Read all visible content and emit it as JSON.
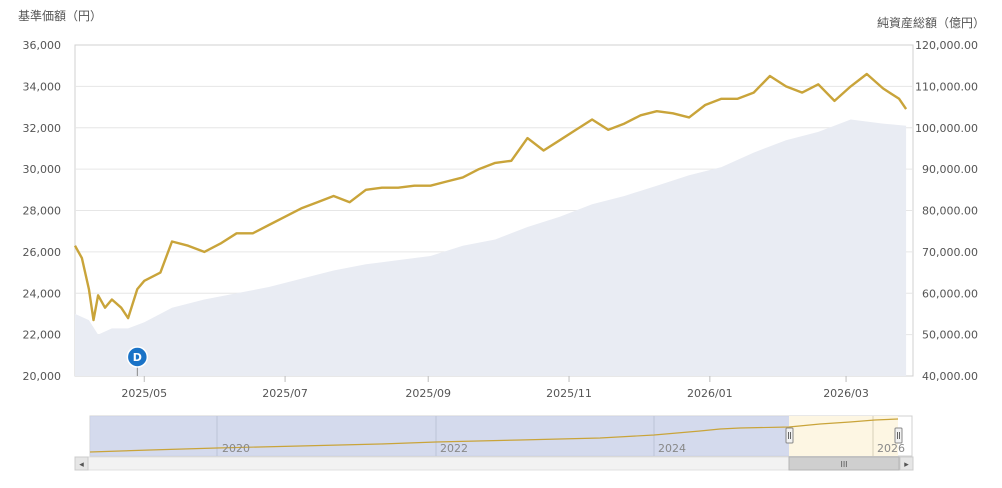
{
  "chart_data": {
    "type": "line",
    "left_axis_title": "基準価額（円）",
    "right_axis_title": "純資産総額（億円）",
    "left_ticks": [
      "36,000",
      "34,000",
      "32,000",
      "30,000",
      "28,000",
      "26,000",
      "24,000",
      "22,000",
      "20,000"
    ],
    "right_ticks": [
      "120,000.00",
      "110,000.00",
      "100,000.00",
      "90,000.00",
      "80,000.00",
      "70,000.00",
      "60,000.00",
      "50,000.00",
      "40,000.00"
    ],
    "ylim_left": [
      20000,
      36000
    ],
    "ylim_right": [
      40000,
      120000
    ],
    "x_ticks": [
      "2025/05",
      "2025/07",
      "2025/09",
      "2025/11",
      "2026/01",
      "2026/03"
    ],
    "grid": true,
    "dividend_marker": {
      "label": "D",
      "date": "2025-04-28"
    },
    "series": [
      {
        "value_axis": "left",
        "style": "line",
        "color": "#c9a43a",
        "x": [
          "2025-04-01",
          "2025-04-04",
          "2025-04-07",
          "2025-04-09",
          "2025-04-11",
          "2025-04-14",
          "2025-04-17",
          "2025-04-21",
          "2025-04-24",
          "2025-04-28",
          "2025-05-01",
          "2025-05-08",
          "2025-05-13",
          "2025-05-20",
          "2025-05-27",
          "2025-06-03",
          "2025-06-10",
          "2025-06-17",
          "2025-06-24",
          "2025-07-01",
          "2025-07-08",
          "2025-07-15",
          "2025-07-22",
          "2025-07-29",
          "2025-08-05",
          "2025-08-12",
          "2025-08-19",
          "2025-08-26",
          "2025-09-02",
          "2025-09-09",
          "2025-09-16",
          "2025-09-23",
          "2025-09-30",
          "2025-10-07",
          "2025-10-14",
          "2025-10-21",
          "2025-10-28",
          "2025-11-04",
          "2025-11-11",
          "2025-11-18",
          "2025-11-25",
          "2025-12-02",
          "2025-12-09",
          "2025-12-16",
          "2025-12-23",
          "2025-12-30",
          "2026-01-06",
          "2026-01-13",
          "2026-01-20",
          "2026-01-27",
          "2026-02-03",
          "2026-02-10",
          "2026-02-17",
          "2026-02-24",
          "2026-03-03",
          "2026-03-10",
          "2026-03-17",
          "2026-03-24",
          "2026-03-27"
        ],
        "values": [
          26300,
          25700,
          24200,
          22700,
          23900,
          23300,
          23700,
          23300,
          22800,
          24200,
          24600,
          25000,
          26500,
          26300,
          26000,
          26400,
          26900,
          26900,
          27300,
          27700,
          28100,
          28400,
          28700,
          28400,
          29000,
          29100,
          29100,
          29200,
          29200,
          29400,
          29600,
          30000,
          30300,
          30400,
          31500,
          30900,
          31400,
          31900,
          32400,
          31900,
          32200,
          32600,
          32800,
          32700,
          32500,
          33100,
          33400,
          33400,
          33700,
          34500,
          34000,
          33700,
          34100,
          33300,
          34000,
          34600,
          33900,
          33400,
          32900
        ],
        "note": "基準価額"
      },
      {
        "value_axis": "right",
        "style": "area",
        "color": "#e9ecf3",
        "x": [
          "2025-04-01",
          "2025-04-07",
          "2025-04-11",
          "2025-04-17",
          "2025-04-24",
          "2025-05-01",
          "2025-05-13",
          "2025-05-27",
          "2025-06-10",
          "2025-06-24",
          "2025-07-08",
          "2025-07-22",
          "2025-08-05",
          "2025-08-19",
          "2025-09-02",
          "2025-09-16",
          "2025-09-30",
          "2025-10-14",
          "2025-10-28",
          "2025-11-11",
          "2025-11-25",
          "2025-12-09",
          "2025-12-23",
          "2026-01-06",
          "2026-01-20",
          "2026-02-03",
          "2026-02-17",
          "2026-03-03",
          "2026-03-17",
          "2026-03-27"
        ],
        "values": [
          55000,
          53500,
          50000,
          51500,
          51500,
          53000,
          56500,
          58500,
          60000,
          61500,
          63500,
          65500,
          67000,
          68000,
          69000,
          71500,
          73000,
          76000,
          78500,
          81500,
          83500,
          86000,
          88500,
          90500,
          94000,
          97000,
          99000,
          102000,
          101000,
          100500
        ]
      }
    ]
  },
  "navigator": {
    "x_ticks": [
      "2020",
      "2022",
      "2024",
      "2026"
    ]
  },
  "scrollbar": {
    "left_arrow": "◂",
    "right_arrow": "▸",
    "grip": "III"
  },
  "colors": {
    "price_line": "#c9a43a",
    "asset_area": "#e9ecf3",
    "navigator_mask": "#ccd4ea",
    "navigator_selected": "#fdf6e3",
    "dividend_marker": "#1a73c7"
  }
}
